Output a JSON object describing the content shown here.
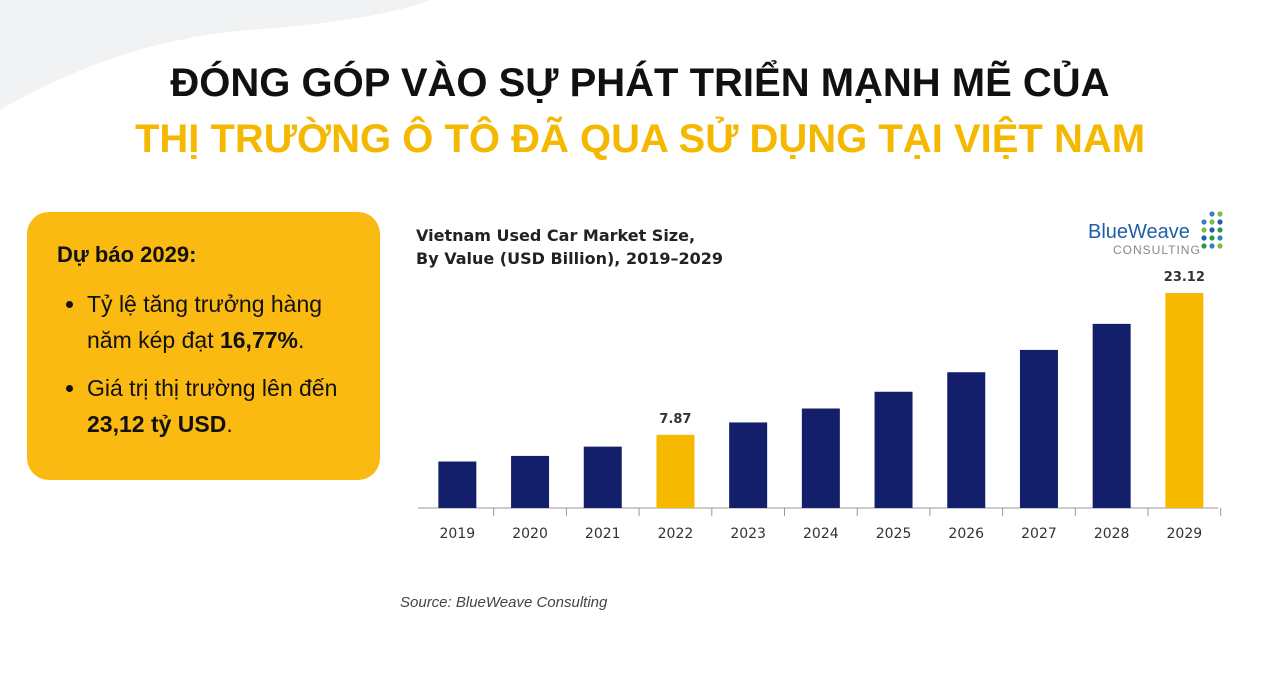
{
  "header": {
    "title_line1": "ĐÓNG GÓP VÀO SỰ PHÁT TRIỂN MẠNH MẼ CỦA",
    "title_line2": "THỊ TRƯỜNG Ô TÔ ĐÃ QUA SỬ DỤNG TẠI VIỆT NAM"
  },
  "info_box": {
    "title": "Dự báo 2029:",
    "bullets": [
      {
        "text": "Tỷ lệ tăng trưởng hàng năm kép đạt ",
        "bold": "16,77%",
        "end": "."
      },
      {
        "text": "Giá trị thị trường lên đến ",
        "bold": "23,12 tỷ USD",
        "end": "."
      }
    ]
  },
  "chart_data": {
    "type": "bar",
    "title_line1": "Vietnam Used Car Market Size,",
    "title_line2": "By Value (USD Billion), 2019–2029",
    "logo_name": "BlueWeave",
    "logo_sub": "CONSULTING",
    "source": "Source: BlueWeave Consulting",
    "categories": [
      "2019",
      "2020",
      "2021",
      "2022",
      "2023",
      "2024",
      "2025",
      "2026",
      "2027",
      "2028",
      "2029"
    ],
    "values": [
      5.0,
      5.6,
      6.6,
      7.87,
      9.2,
      10.7,
      12.5,
      14.6,
      17.0,
      19.8,
      23.12
    ],
    "value_labels": [
      null,
      null,
      null,
      "7.87",
      null,
      null,
      null,
      null,
      null,
      null,
      "23.12"
    ],
    "colors": [
      "#141f6b",
      "#141f6b",
      "#141f6b",
      "#f7b800",
      "#141f6b",
      "#141f6b",
      "#141f6b",
      "#141f6b",
      "#141f6b",
      "#141f6b",
      "#f7b800"
    ],
    "ylim": [
      0,
      23.12
    ]
  }
}
